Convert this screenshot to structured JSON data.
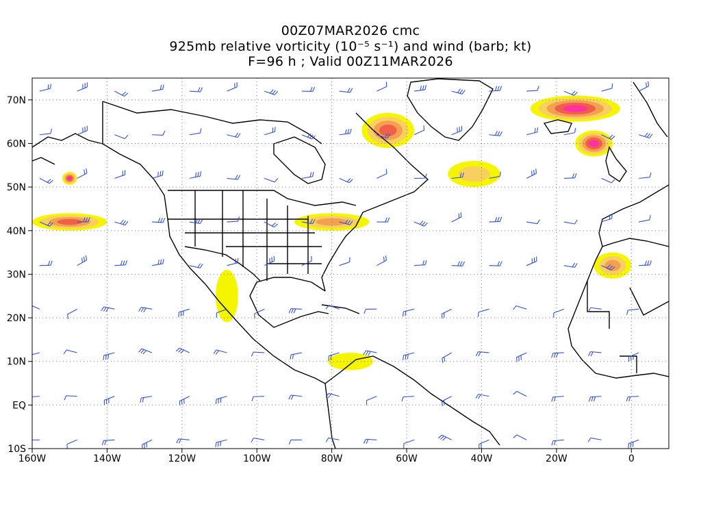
{
  "title": {
    "line1": "00Z07MAR2026 cmc",
    "line2": "925mb relative vorticity (10⁻⁵ s⁻¹) and wind (barb; kt)",
    "line3": "F=96 h ; Valid 00Z11MAR2026"
  },
  "axes": {
    "lon_range": [
      -160,
      10
    ],
    "lat_range": [
      -10,
      75
    ],
    "lon_ticks": [
      {
        "v": -160,
        "label": "160W"
      },
      {
        "v": -140,
        "label": "140W"
      },
      {
        "v": -120,
        "label": "120W"
      },
      {
        "v": -100,
        "label": "100W"
      },
      {
        "v": -80,
        "label": "80W"
      },
      {
        "v": -60,
        "label": "60W"
      },
      {
        "v": -40,
        "label": "40W"
      },
      {
        "v": -20,
        "label": "20W"
      },
      {
        "v": 0,
        "label": "0"
      }
    ],
    "lat_ticks": [
      {
        "v": 70,
        "label": "70N"
      },
      {
        "v": 60,
        "label": "60N"
      },
      {
        "v": 50,
        "label": "50N"
      },
      {
        "v": 40,
        "label": "40N"
      },
      {
        "v": 30,
        "label": "30N"
      },
      {
        "v": 20,
        "label": "20N"
      },
      {
        "v": 10,
        "label": "10N"
      },
      {
        "v": 0,
        "label": "EQ"
      },
      {
        "v": -10,
        "label": "10S"
      }
    ],
    "grid": "dotted"
  },
  "colors": {
    "coast": "#000000",
    "barb": "#3050e0",
    "shade_1": "#f5f500",
    "shade_2": "#f7d060",
    "shade_3": "#f5a050",
    "shade_4": "#f06048",
    "shade_5": "#ff30a0"
  },
  "vorticity_regions": [
    {
      "name": "central-atlantic",
      "lon": -42,
      "lat": 53,
      "rx": 7,
      "ry": 3,
      "level": 2
    },
    {
      "name": "canada-arctic",
      "lon": -65,
      "lat": 63,
      "rx": 7,
      "ry": 4,
      "level": 4
    },
    {
      "name": "iceland-band",
      "lon": -15,
      "lat": 68,
      "rx": 12,
      "ry": 3,
      "level": 5
    },
    {
      "name": "uk-low",
      "lon": -10,
      "lat": 60,
      "rx": 5,
      "ry": 3,
      "level": 5
    },
    {
      "name": "alaska-gulf",
      "lon": -150,
      "lat": 52,
      "rx": 2,
      "ry": 1.5,
      "level": 5
    },
    {
      "name": "pacific-band",
      "lon": -150,
      "lat": 42,
      "rx": 10,
      "ry": 2,
      "level": 4
    },
    {
      "name": "great-lakes",
      "lon": -80,
      "lat": 42,
      "rx": 10,
      "ry": 2,
      "level": 3
    },
    {
      "name": "iberia",
      "lon": -5,
      "lat": 32,
      "rx": 5,
      "ry": 3,
      "level": 3
    },
    {
      "name": "mexico-coast",
      "lon": -108,
      "lat": 25,
      "rx": 3,
      "ry": 6,
      "level": 1
    },
    {
      "name": "caribbean",
      "lon": -75,
      "lat": 10,
      "rx": 6,
      "ry": 2,
      "level": 1
    }
  ]
}
